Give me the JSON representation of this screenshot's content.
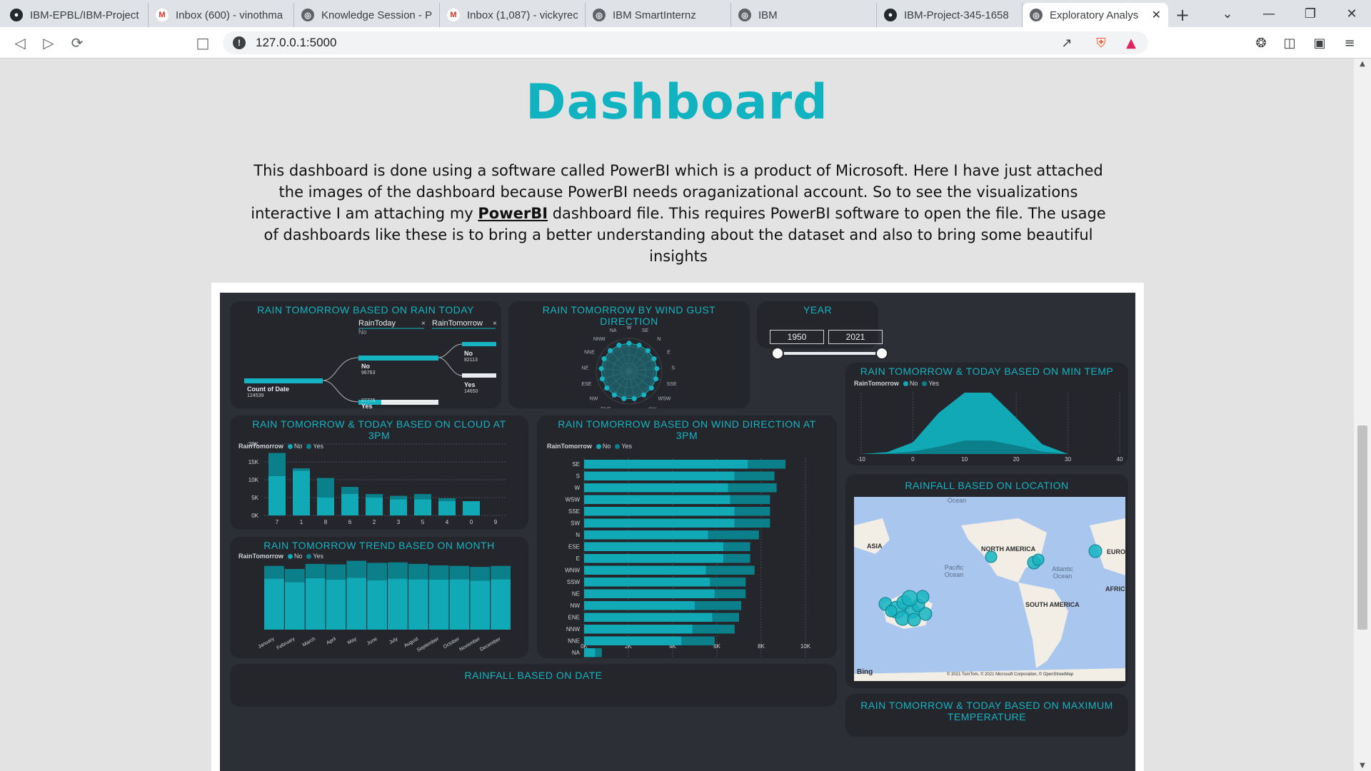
{
  "browser": {
    "tabs": [
      {
        "label": "IBM-EPBL/IBM-Project",
        "icon": "github-icon"
      },
      {
        "label": "Inbox (600) - vinothma",
        "icon": "gmail-icon"
      },
      {
        "label": "Knowledge Session - P",
        "icon": "globe-icon"
      },
      {
        "label": "Inbox (1,087) - vickyrec",
        "icon": "gmail-icon"
      },
      {
        "label": "IBM SmartInternz",
        "icon": "globe-icon"
      },
      {
        "label": "IBM",
        "icon": "globe-icon"
      },
      {
        "label": "IBM-Project-345-1658",
        "icon": "github-icon"
      },
      {
        "label": "Exploratory Analys",
        "icon": "globe-icon",
        "active": true
      }
    ],
    "url": "127.0.0.1:5000"
  },
  "page": {
    "title": "Dashboard",
    "intro_part1": "This dashboard is done using a software called PowerBI which is a product of Microsoft. Here I have just attached the images of the dashboard because PowerBI needs oraganizational account. So to see the visualizations interactive I am attaching my ",
    "intro_link": "PowerBI",
    "intro_part2": " dashboard file. This requires PowerBI software to open the file. The usage of dashboards like these is to bring a better understanding about the dataset and also to bring some beautiful insights"
  },
  "dashboard": {
    "colors": {
      "no": "#11a9b6",
      "yes": "#0b7f8a",
      "accent": "#16b4c2",
      "bg": "#2d2f36",
      "card": "#24262c"
    },
    "legend": {
      "label": "RainTomorrow",
      "no": "No",
      "yes": "Yes"
    },
    "decomp": {
      "title": "RAIN TOMORROW BASED ON RAIN TODAY",
      "col1": "RainToday",
      "col1_sub": "No",
      "col2": "RainTomorrow",
      "root_label": "Count of Date",
      "root_value": "124539",
      "no_label": "No",
      "no_value": "96763",
      "yes_label": "Yes",
      "yes_value": "27776",
      "t_no_label": "No",
      "t_no_value": "82113",
      "t_yes_label": "Yes",
      "t_yes_value": "14650"
    },
    "radar": {
      "title": "RAIN TOMORROW BY WIND GUST DIRECTION",
      "directions": [
        "W",
        "SE",
        "N",
        "E",
        "S",
        "SSE",
        "WSW",
        "SW",
        "SSW",
        "WNW",
        "ENE",
        "NW",
        "ESE",
        "NE",
        "NNE",
        "NNW",
        "NA"
      ]
    },
    "year": {
      "title": "YEAR",
      "from": "1950",
      "to": "2021"
    },
    "mintemp": {
      "title": "RAIN TOMORROW & TODAY BASED ON MIN TEMP",
      "ticks": [
        "-10",
        "0",
        "10",
        "20",
        "30",
        "40"
      ]
    },
    "cloud": {
      "title": "RAIN TOMORROW & TODAY BASED ON CLOUD AT 3PM",
      "yticks": [
        "20K",
        "15K",
        "10K",
        "5K",
        "0K"
      ]
    },
    "winddir": {
      "title": "RAIN TOMORROW BASED ON WIND DIRECTION AT 3PM",
      "xticks": [
        "0K",
        "2K",
        "4K",
        "6K",
        "8K",
        "10K"
      ]
    },
    "location": {
      "title": "RAINFALL BASED ON LOCATION",
      "labels": {
        "asia": "ASIA",
        "na": "NORTH AMERICA",
        "sa": "SOUTH AMERICA",
        "euro": "EURO",
        "afri": "AFRIC",
        "pacific": "Pacific Ocean",
        "atlantic": "Atlantic Ocean",
        "ocean": "Ocean"
      },
      "bing": "Bing",
      "credit": "© 2021 TomTom, © 2021 Microsoft Corporation, © OpenStreetMap"
    },
    "month": {
      "title": "RAIN TOMORROW TREND BASED ON MONTH"
    },
    "date_title": "RAINFALL BASED ON DATE",
    "maxtemp_title": "RAIN TOMORROW & TODAY BASED ON MAXIMUM TEMPERATURE"
  },
  "chart_data": [
    {
      "type": "bar",
      "title": "RAIN TOMORROW & TODAY BASED ON CLOUD AT 3PM",
      "categories": [
        "7",
        "1",
        "8",
        "6",
        "2",
        "3",
        "5",
        "4",
        "0",
        "9"
      ],
      "series": [
        {
          "name": "No",
          "values": [
            11000,
            12500,
            5000,
            6000,
            5000,
            4500,
            4500,
            4000,
            4000,
            0
          ]
        },
        {
          "name": "Yes",
          "values": [
            6500,
            700,
            5500,
            2000,
            1000,
            1000,
            1500,
            800,
            0,
            0
          ]
        }
      ],
      "ylim": [
        0,
        20000
      ],
      "ylabel": "",
      "xlabel": ""
    },
    {
      "type": "bar",
      "orientation": "horizontal",
      "title": "RAIN TOMORROW BASED ON WIND DIRECTION AT 3PM",
      "categories": [
        "SE",
        "S",
        "W",
        "WSW",
        "SSE",
        "SW",
        "N",
        "ESE",
        "E",
        "WNW",
        "SSW",
        "NE",
        "NW",
        "ENE",
        "NNW",
        "NNE",
        "NA"
      ],
      "series": [
        {
          "name": "No",
          "values": [
            7400,
            6800,
            6500,
            6600,
            6800,
            6800,
            5600,
            6300,
            6300,
            5500,
            5700,
            5900,
            5000,
            5800,
            4900,
            4400,
            500
          ]
        },
        {
          "name": "Yes",
          "values": [
            1700,
            1800,
            2200,
            1800,
            1600,
            1600,
            2300,
            1200,
            1200,
            2200,
            1600,
            1400,
            2100,
            1200,
            1900,
            1500,
            300
          ]
        }
      ],
      "xlim": [
        0,
        10000
      ]
    },
    {
      "type": "area",
      "title": "RAIN TOMORROW & TODAY BASED ON MIN TEMP",
      "x": [
        -10,
        -5,
        0,
        5,
        10,
        15,
        20,
        25,
        30,
        40
      ],
      "series": [
        {
          "name": "No",
          "values": [
            0,
            2,
            15,
            55,
            100,
            85,
            45,
            12,
            0,
            0
          ]
        },
        {
          "name": "Yes",
          "values": [
            0,
            1,
            4,
            12,
            22,
            22,
            14,
            4,
            0,
            0
          ]
        }
      ],
      "xlim": [
        -10,
        40
      ]
    },
    {
      "type": "area",
      "title": "RAIN TOMORROW TREND BASED ON MONTH",
      "categories": [
        "January",
        "February",
        "March",
        "April",
        "May",
        "June",
        "July",
        "August",
        "September",
        "October",
        "November",
        "December"
      ],
      "series": [
        {
          "name": "No",
          "values": [
            10000,
            9300,
            10100,
            9800,
            10200,
            9700,
            10000,
            9900,
            9800,
            9900,
            9600,
            9900
          ]
        },
        {
          "name": "Yes",
          "values": [
            2500,
            2600,
            2800,
            3000,
            3300,
            3400,
            3200,
            3000,
            2800,
            2600,
            2700,
            2600
          ]
        }
      ]
    }
  ]
}
